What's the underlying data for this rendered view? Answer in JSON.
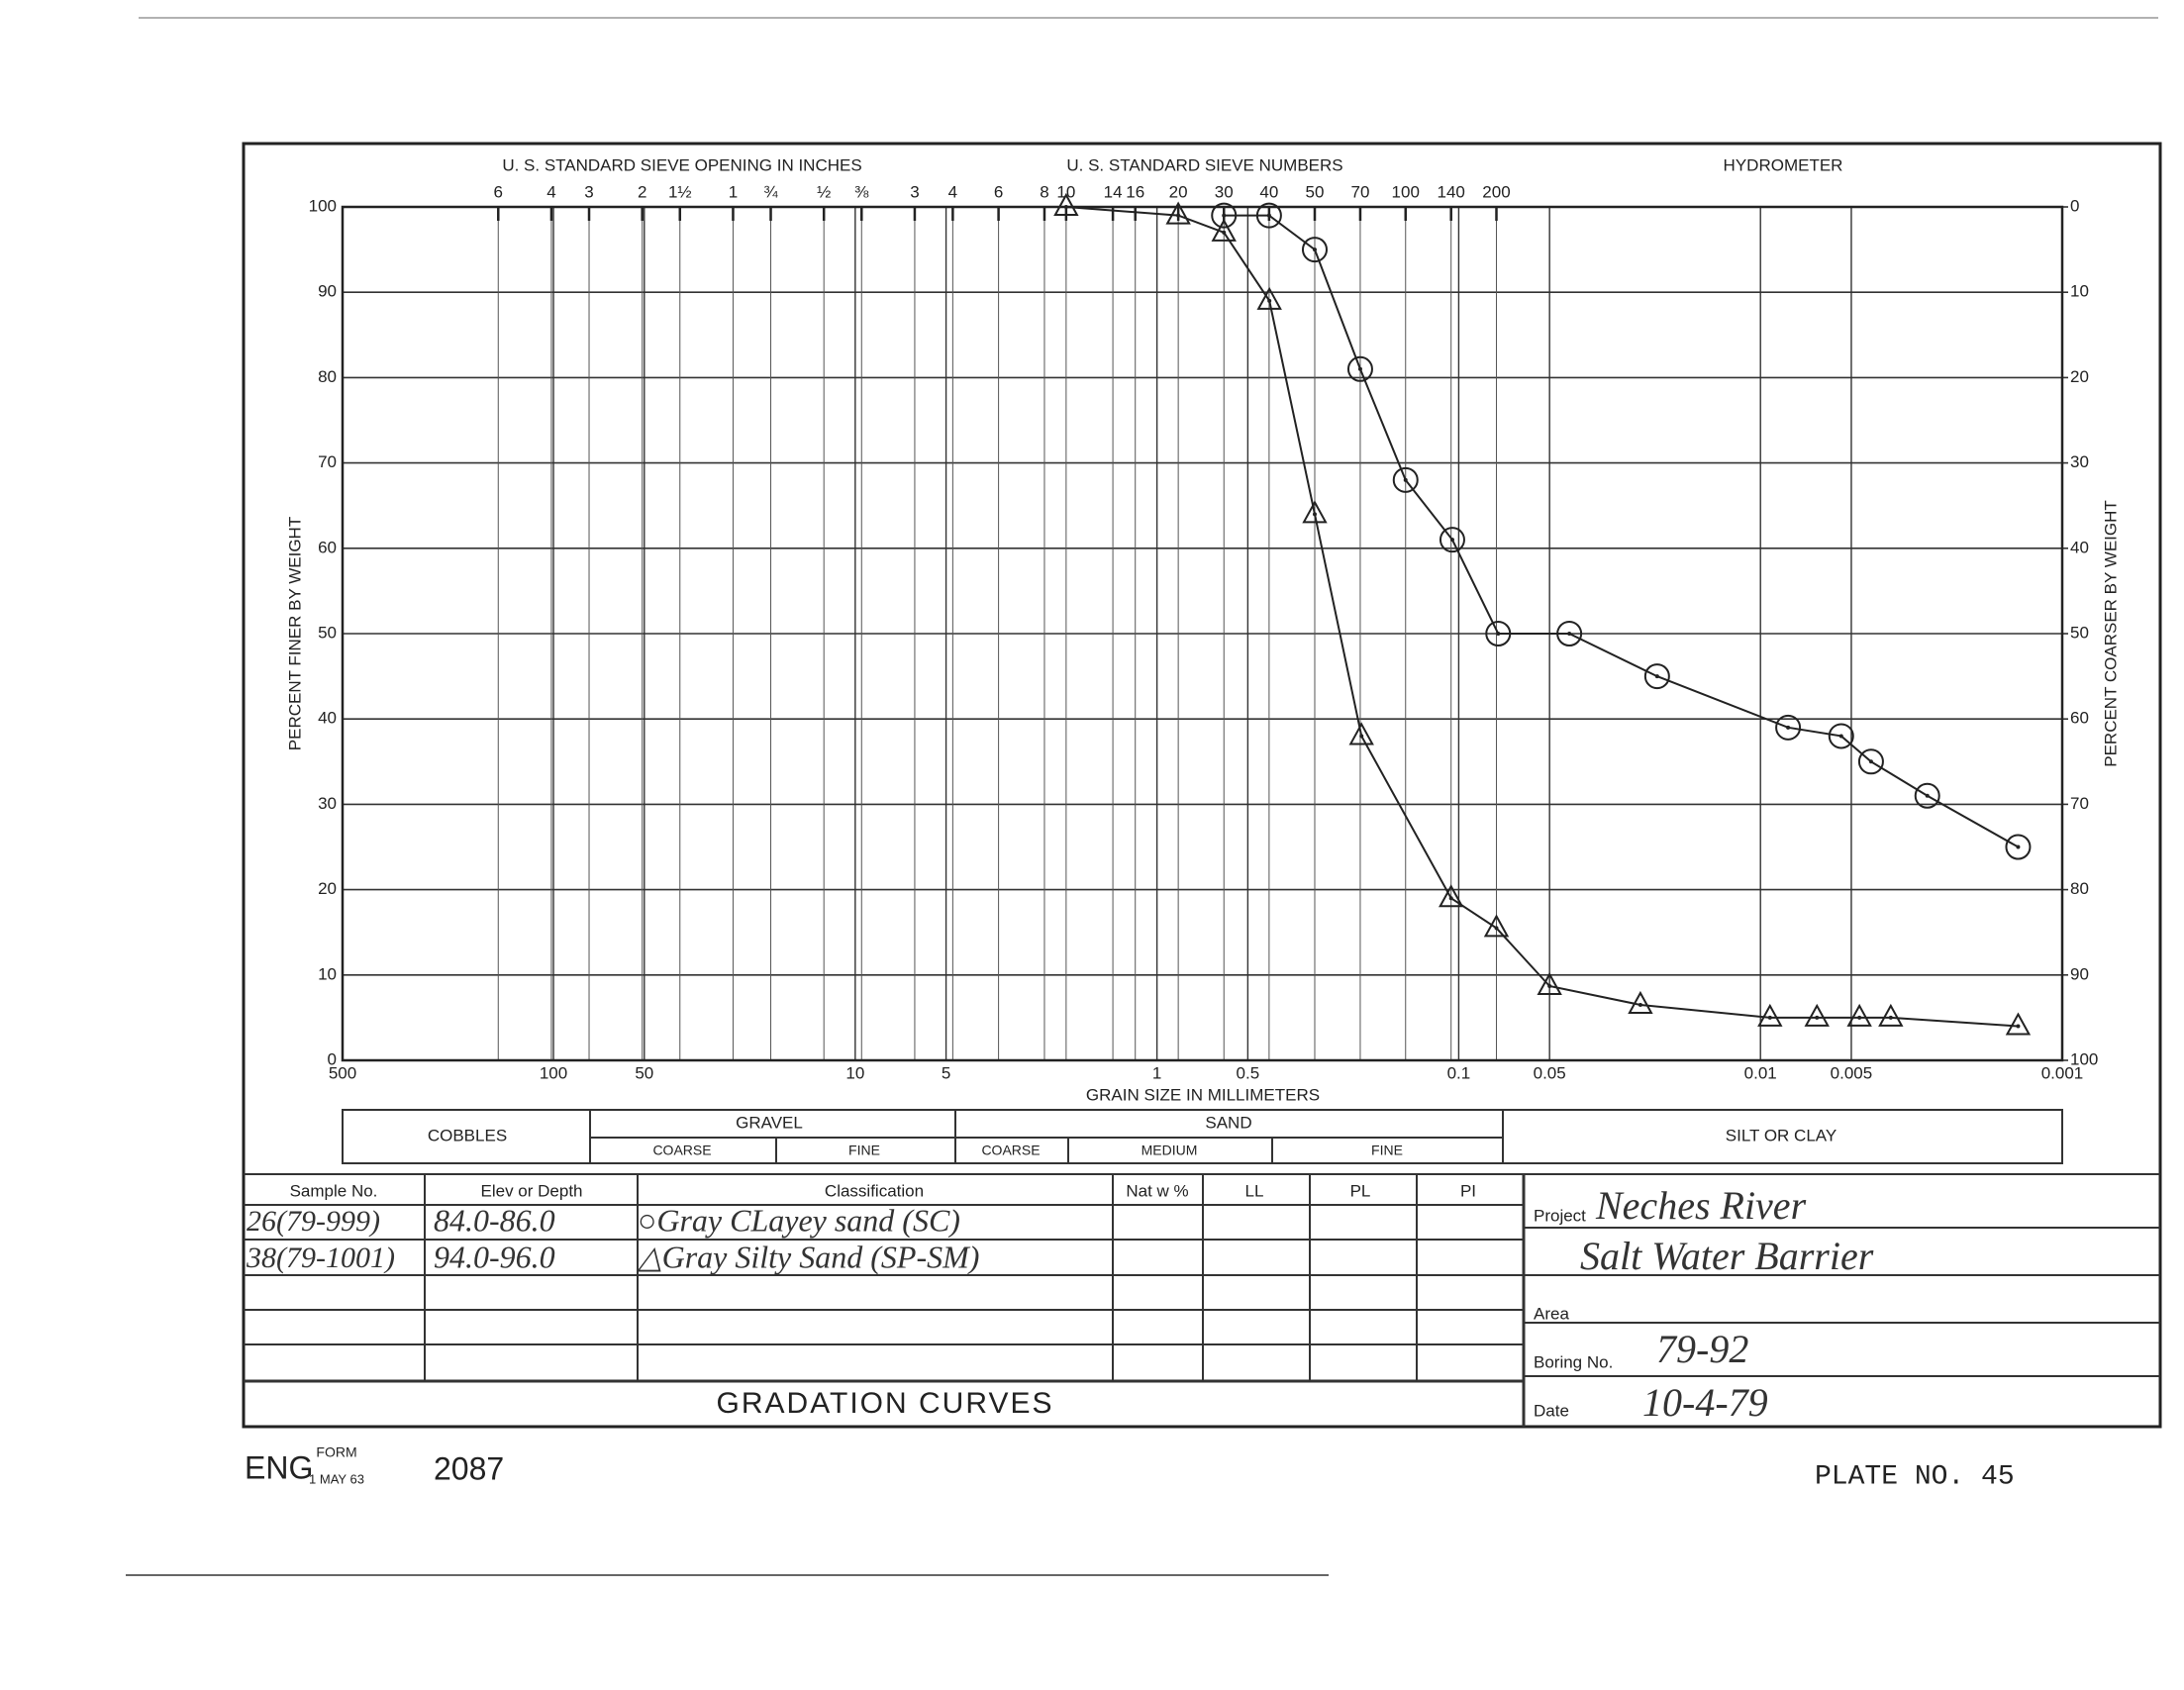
{
  "chart_data": {
    "type": "line",
    "sieve_inches_label": "U. S. STANDARD SIEVE OPENING IN INCHES",
    "sieve_numbers_label": "U. S. STANDARD SIEVE NUMBERS",
    "hydrometer_label": "HYDROMETER",
    "xlabel": "GRAIN SIZE IN MILLIMETERS",
    "ylabel": "PERCENT FINER BY WEIGHT",
    "y2label": "PERCENT COARSER BY WEIGHT",
    "xscale": "log",
    "xlim": [
      500,
      0.001
    ],
    "xticks": [
      500,
      100,
      50,
      10,
      5,
      1,
      0.5,
      0.1,
      0.05,
      0.01,
      0.005,
      0.001
    ],
    "top_xticks": [
      {
        "value": 152.4,
        "label": "6"
      },
      {
        "value": 101.6,
        "label": "4"
      },
      {
        "value": 76.2,
        "label": "3"
      },
      {
        "value": 50.8,
        "label": "2"
      },
      {
        "value": 38.1,
        "label": "1½"
      },
      {
        "value": 25.4,
        "label": "1"
      },
      {
        "value": 19.05,
        "label": "¾"
      },
      {
        "value": 12.7,
        "label": "½"
      },
      {
        "value": 9.525,
        "label": "⅜"
      },
      {
        "value": 6.35,
        "label": "3"
      },
      {
        "value": 4.75,
        "label": "4"
      },
      {
        "value": 3.35,
        "label": "6"
      },
      {
        "value": 2.36,
        "label": "8"
      },
      {
        "value": 2.0,
        "label": "10"
      },
      {
        "value": 1.4,
        "label": "14"
      },
      {
        "value": 1.18,
        "label": "16"
      },
      {
        "value": 0.85,
        "label": "20"
      },
      {
        "value": 0.6,
        "label": "30"
      },
      {
        "value": 0.425,
        "label": "40"
      },
      {
        "value": 0.3,
        "label": "50"
      },
      {
        "value": 0.212,
        "label": "70"
      },
      {
        "value": 0.15,
        "label": "100"
      },
      {
        "value": 0.106,
        "label": "140"
      },
      {
        "value": 0.075,
        "label": "200"
      }
    ],
    "ylim": [
      0,
      100
    ],
    "yticks": [
      0,
      10,
      20,
      30,
      40,
      50,
      60,
      70,
      80,
      90,
      100
    ],
    "y2lim": [
      100,
      0
    ],
    "y2ticks": [
      0,
      10,
      20,
      30,
      40,
      50,
      60,
      70,
      80,
      90,
      100
    ],
    "grid": true,
    "series": [
      {
        "marker": "circle",
        "color": "#222",
        "x": [
          0.6,
          0.425,
          0.3,
          0.212,
          0.15,
          0.105,
          0.074,
          0.043,
          0.022,
          0.0081,
          0.0054,
          0.0043,
          0.0028,
          0.0014
        ],
        "values": [
          99,
          99,
          95,
          81,
          68,
          61,
          50,
          50,
          45,
          39,
          38,
          35,
          31,
          25
        ]
      },
      {
        "marker": "triangle",
        "color": "#222",
        "x": [
          2.0,
          0.85,
          0.6,
          0.424,
          0.3,
          0.21,
          0.106,
          0.075,
          0.05,
          0.025,
          0.0093,
          0.0065,
          0.0047,
          0.0037,
          0.0014
        ],
        "values": [
          100,
          99,
          97,
          89,
          64,
          38,
          19,
          15.5,
          8.7,
          6.5,
          5,
          5,
          5,
          5,
          4
        ]
      }
    ]
  },
  "classification_band": {
    "cobbles": "COBBLES",
    "gravel": "GRAVEL",
    "gravel_coarse": "COARSE",
    "gravel_fine": "FINE",
    "sand": "SAND",
    "sand_coarse": "COARSE",
    "sand_medium": "MEDIUM",
    "sand_fine": "FINE",
    "silt_or_clay": "SILT OR CLAY"
  },
  "sample_table": {
    "headers": [
      "Sample No.",
      "Elev or Depth",
      "Classification",
      "Nat w %",
      "LL",
      "PL",
      "PI"
    ],
    "rows": [
      [
        "26(79-999)",
        "84.0-86.0",
        "○Gray CLayey sand (SC)"
      ],
      [
        "38(79-1001)",
        "94.0-96.0",
        "△Gray Silty Sand (SP-SM)"
      ]
    ]
  },
  "project": {
    "label": "Project",
    "name_line1": "Neches River",
    "name_line2": "Salt Water Barrier",
    "area_label": "Area",
    "boring_label": "Boring No.",
    "boring": "79-92",
    "date_label": "Date",
    "date": "10-4-79"
  },
  "title": "GRADATION CURVES",
  "footer": {
    "prefix": "ENG",
    "form_label": "FORM",
    "form_date": "1 MAY 63",
    "form_number": "2087",
    "plate": "PLATE NO. 45"
  }
}
